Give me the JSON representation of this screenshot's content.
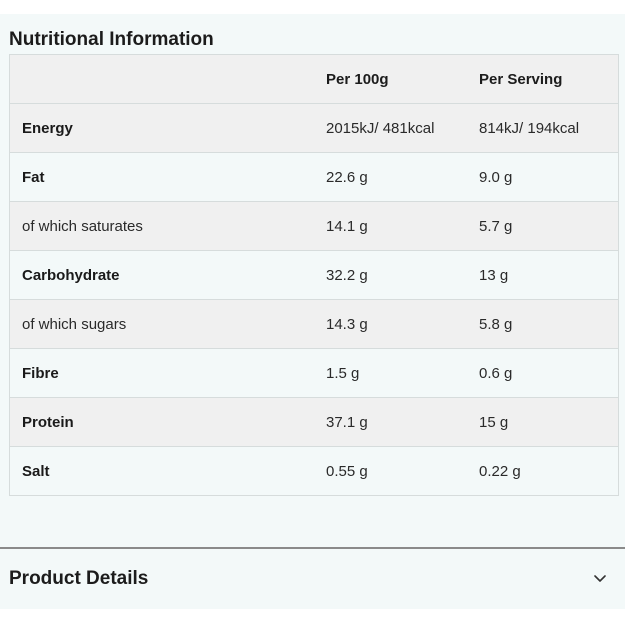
{
  "nutrition": {
    "title": "Nutritional Information",
    "columns": [
      "",
      "Per 100g",
      "Per Serving"
    ],
    "rows": [
      {
        "name": "Energy",
        "per100g": "2015kJ/ 481kcal",
        "perServing": "814kJ/ 194kcal",
        "bold": true
      },
      {
        "name": "Fat",
        "per100g": "22.6 g",
        "perServing": "9.0 g",
        "bold": true
      },
      {
        "name": "of which saturates",
        "per100g": "14.1 g",
        "perServing": "5.7 g",
        "bold": false
      },
      {
        "name": "Carbohydrate",
        "per100g": "32.2 g",
        "perServing": "13 g",
        "bold": true
      },
      {
        "name": "of which sugars",
        "per100g": "14.3 g",
        "perServing": "5.8 g",
        "bold": false
      },
      {
        "name": "Fibre",
        "per100g": "1.5 g",
        "perServing": "0.6 g",
        "bold": true
      },
      {
        "name": "Protein",
        "per100g": "37.1 g",
        "perServing": "15 g",
        "bold": true
      },
      {
        "name": "Salt",
        "per100g": "0.55 g",
        "perServing": "0.22 g",
        "bold": true
      }
    ]
  },
  "productDetails": {
    "label": "Product Details",
    "icon": "chevron-down-icon",
    "expanded": false
  },
  "colors": {
    "panel_bg": "#f3f9f9",
    "stripe_bg": "#f0f0f0",
    "border": "#d6dcdc",
    "text": "#1c1c1c"
  }
}
